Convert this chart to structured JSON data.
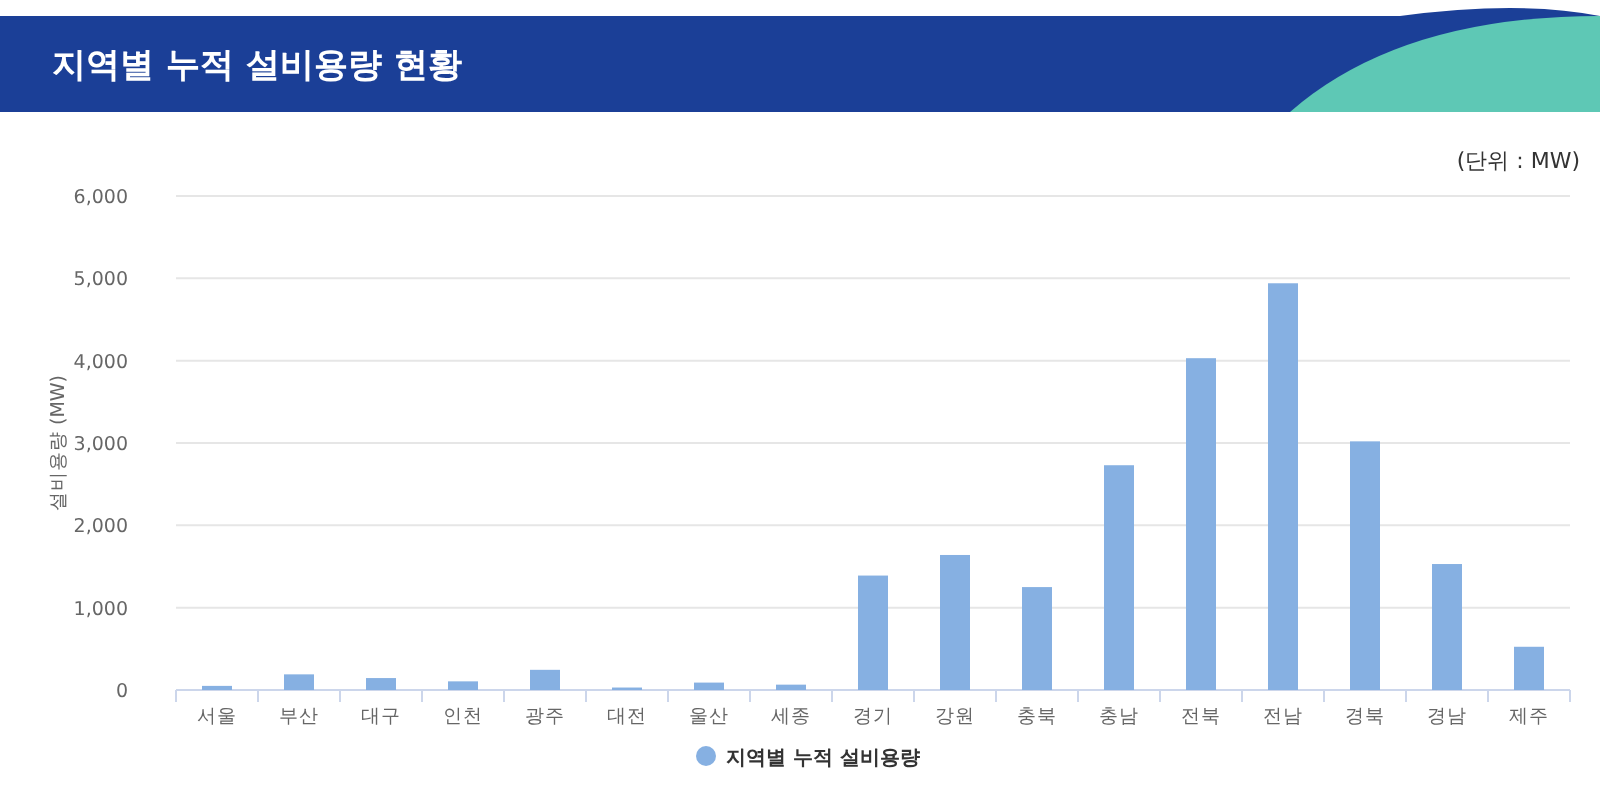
{
  "chart_data": {
    "type": "bar",
    "title": "지역별 누적 설비용량 현황",
    "ylabel": "설비용량 (MW)",
    "annotations": [
      "(단위 : MW)"
    ],
    "categories": [
      "서울",
      "부산",
      "대구",
      "인천",
      "광주",
      "대전",
      "울산",
      "세종",
      "경기",
      "강원",
      "충북",
      "충남",
      "전북",
      "전남",
      "경북",
      "경남",
      "제주"
    ],
    "series": [
      {
        "name": "지역별 누적 설비용량",
        "color": "#86b0e2",
        "values": [
          50,
          190,
          145,
          105,
          245,
          30,
          90,
          65,
          1390,
          1640,
          1250,
          2730,
          4030,
          4940,
          3020,
          1530,
          525
        ]
      }
    ],
    "ylim": [
      0,
      6000
    ],
    "yticks": [
      {
        "value": 0,
        "label": "0"
      },
      {
        "value": 1000,
        "label": "1,000"
      },
      {
        "value": 2000,
        "label": "2,000"
      },
      {
        "value": 3000,
        "label": "3,000"
      },
      {
        "value": 4000,
        "label": "4,000"
      },
      {
        "value": 5000,
        "label": "5,000"
      },
      {
        "value": 6000,
        "label": "6,000"
      }
    ],
    "grid": "y",
    "legend": "bottom"
  }
}
